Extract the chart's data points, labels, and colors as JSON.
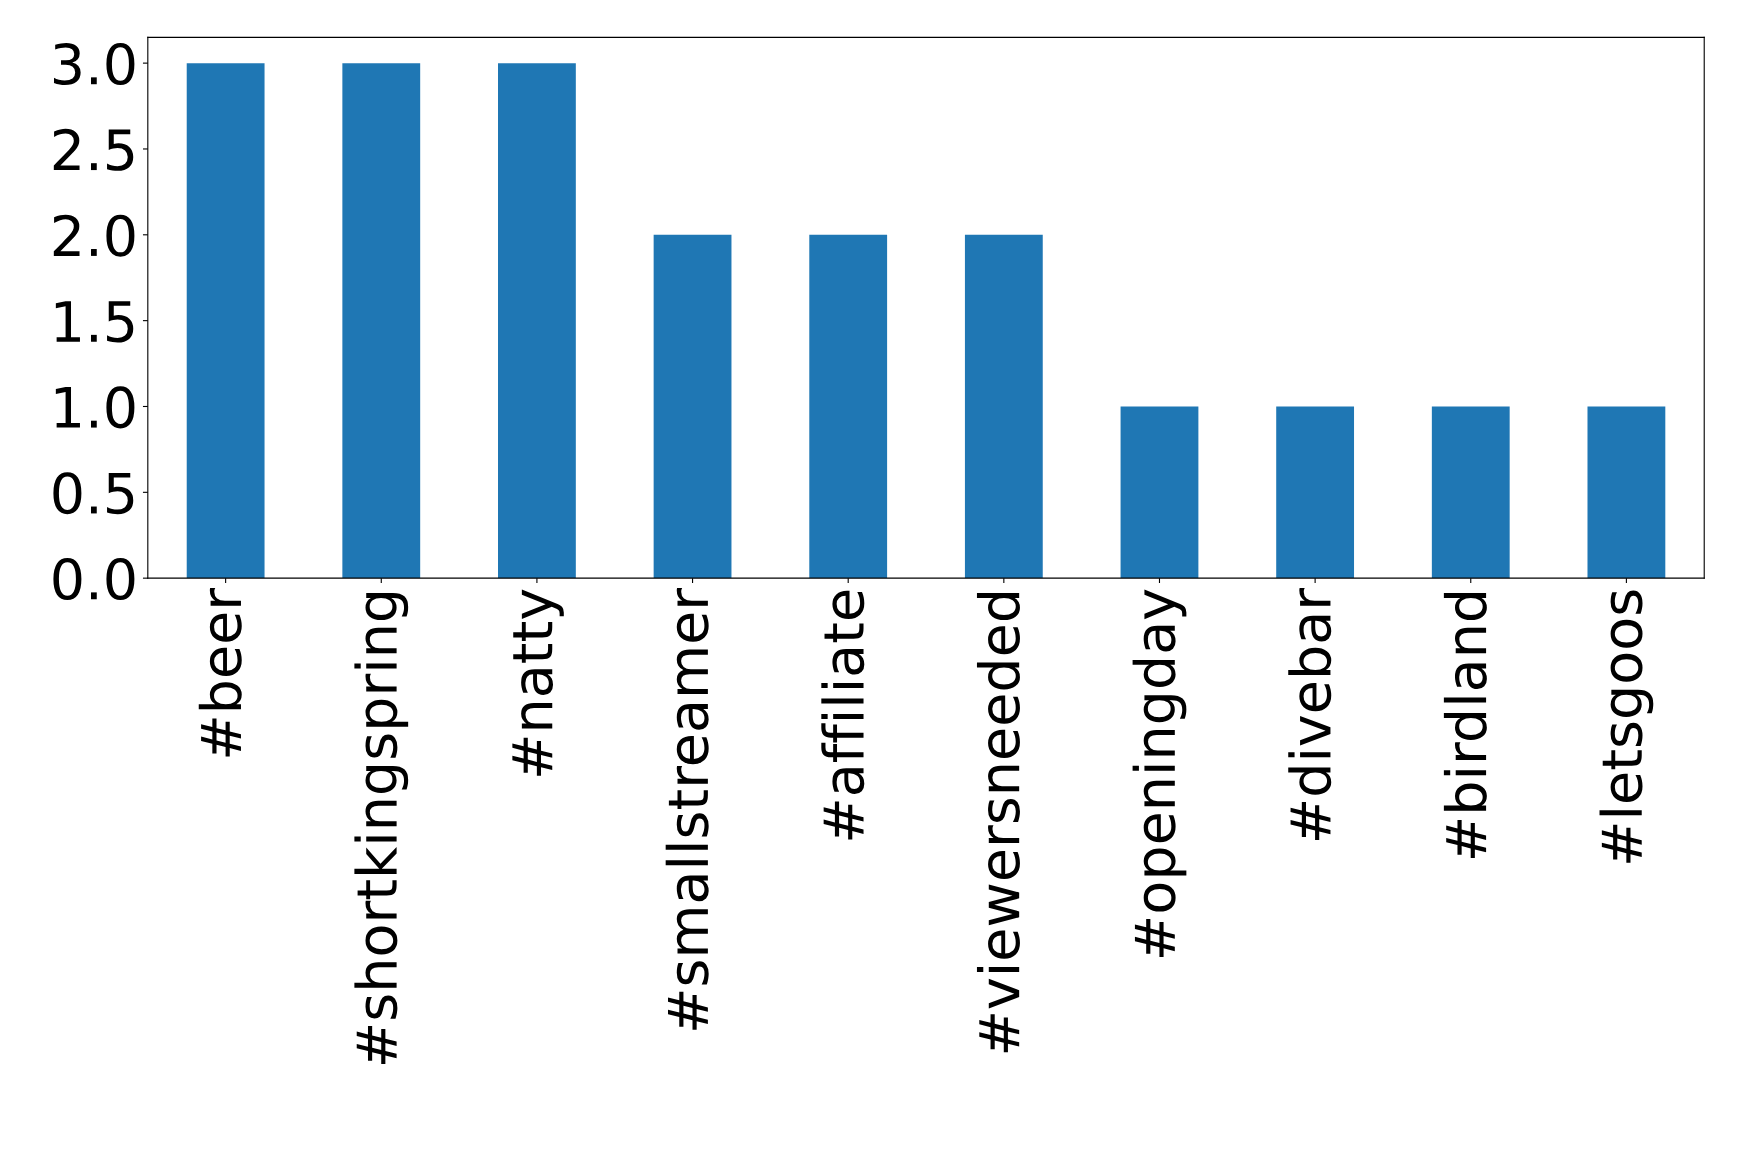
{
  "chart_data": {
    "type": "bar",
    "categories": [
      "#beer",
      "#shortkingspring",
      "#natty",
      "#smallstreamer",
      "#affiliate",
      "#viewersneeded",
      "#openingday",
      "#divebar",
      "#birdland",
      "#letsgoos"
    ],
    "values": [
      3,
      3,
      3,
      2,
      2,
      2,
      1,
      1,
      1,
      1
    ],
    "color": "#1f77b4",
    "ylim": [
      0,
      3.15
    ],
    "yticks": [
      {
        "value": 0,
        "label": "0.0"
      },
      {
        "value": 0.5,
        "label": "0.5"
      },
      {
        "value": 1,
        "label": "1.0"
      },
      {
        "value": 1.5,
        "label": "1.5"
      },
      {
        "value": 2,
        "label": "2.0"
      },
      {
        "value": 2.5,
        "label": "2.5"
      },
      {
        "value": 3,
        "label": "3.0"
      }
    ],
    "grid": false,
    "legend": false
  }
}
